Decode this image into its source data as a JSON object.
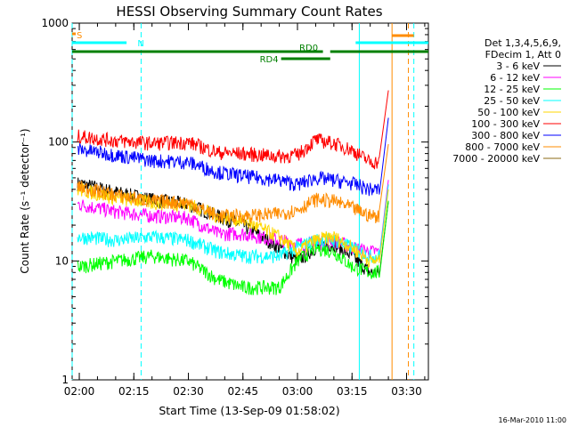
{
  "chart_data": {
    "type": "line",
    "title": "HESSI Observing Summary Count Rates",
    "xlabel": "Start Time (13-Sep-09 01:58:02)",
    "ylabel": "Count Rate (s⁻¹ detector⁻¹)",
    "y_scale": "log",
    "ylim": [
      1,
      1000
    ],
    "xlim": [
      "01:58:02",
      "03:36:00"
    ],
    "x_tick_labels": [
      "02:00",
      "02:15",
      "02:30",
      "02:45",
      "03:00",
      "03:15",
      "03:30"
    ],
    "y_tick_labels": [
      "1",
      "10",
      "100",
      "1000"
    ],
    "grid": false,
    "legend_position": "right",
    "legend_header": [
      "Det 1,3,4,5,6,9,",
      "FDecim 1, Att 0"
    ],
    "timestamp": "16-Mar-2010 11:00",
    "flag_bars": [
      {
        "label": "S",
        "color": "#ff8c00",
        "start": "01:58:02",
        "end": "01:59:00"
      },
      {
        "label": "N",
        "color": "#00ffff",
        "start": "01:58:02",
        "end": "02:13:00"
      },
      {
        "label": "",
        "color": "#00ffff",
        "start": "03:16:00",
        "end": "03:36:00"
      },
      {
        "label": "RD0",
        "color": "#008000",
        "start": "01:58:02",
        "end": "03:07:00"
      },
      {
        "label": "",
        "color": "#008000",
        "start": "03:09:00",
        "end": "03:36:00"
      },
      {
        "label": "RD4",
        "color": "#008000",
        "start": "02:55:30",
        "end": "03:09:00"
      },
      {
        "label": "",
        "color": "#ff8c00",
        "start": "03:26:00",
        "end": "03:32:00"
      }
    ],
    "vertical_markers": [
      {
        "time": "01:58:02",
        "color": "#00ffff",
        "style": "dashed"
      },
      {
        "time": "02:17:00",
        "color": "#00ffff",
        "style": "dashed"
      },
      {
        "time": "03:17:00",
        "color": "#00ffff",
        "style": "solid"
      },
      {
        "time": "03:26:00",
        "color": "#ff8c00",
        "style": "solid"
      },
      {
        "time": "03:30:30",
        "color": "#ff8c00",
        "style": "dashed"
      },
      {
        "time": "03:32:00",
        "color": "#00ffff",
        "style": "dashed"
      }
    ],
    "x_times": [
      "02:00",
      "02:10",
      "02:20",
      "02:30",
      "02:38",
      "02:45",
      "02:55",
      "03:00",
      "03:05",
      "03:10",
      "03:15",
      "03:20"
    ],
    "series": [
      {
        "name": "3 - 6 keV",
        "color": "#000000",
        "values": [
          45,
          38,
          33,
          30,
          24,
          20,
          13,
          10,
          13,
          14,
          11,
          8
        ]
      },
      {
        "name": "6 - 12 keV",
        "color": "#ff00ff",
        "values": [
          30,
          26,
          24,
          23,
          17,
          17,
          15,
          14,
          14,
          15,
          13,
          12
        ]
      },
      {
        "name": "12 - 25 keV",
        "color": "#00ff00",
        "values": [
          9,
          10,
          11,
          10,
          7,
          6,
          6,
          10,
          13,
          12,
          9,
          8
        ]
      },
      {
        "name": "25 - 50 keV",
        "color": "#00ffff",
        "values": [
          16,
          15,
          16,
          15,
          12,
          11,
          11,
          13,
          15,
          15,
          13,
          11
        ]
      },
      {
        "name": "50 - 100 keV",
        "color": "#ffd700",
        "values": [
          40,
          34,
          31,
          30,
          24,
          22,
          16,
          12,
          15,
          16,
          13,
          10
        ]
      },
      {
        "name": "100 - 300 keV",
        "color": "#ff0000",
        "values": [
          112,
          103,
          98,
          100,
          82,
          80,
          76,
          78,
          105,
          98,
          86,
          68
        ]
      },
      {
        "name": "300 - 800 keV",
        "color": "#0000ff",
        "values": [
          87,
          78,
          70,
          68,
          56,
          52,
          48,
          44,
          50,
          48,
          45,
          40
        ]
      },
      {
        "name": "800 - 7000 keV",
        "color": "#ff8c00",
        "values": [
          42,
          36,
          32,
          31,
          24,
          24,
          25,
          27,
          33,
          32,
          28,
          24
        ]
      },
      {
        "name": "7000 - 20000 keV",
        "color": "#8b6914",
        "values": [
          null,
          null,
          null,
          null,
          null,
          null,
          null,
          null,
          null,
          null,
          null,
          null
        ]
      }
    ]
  }
}
